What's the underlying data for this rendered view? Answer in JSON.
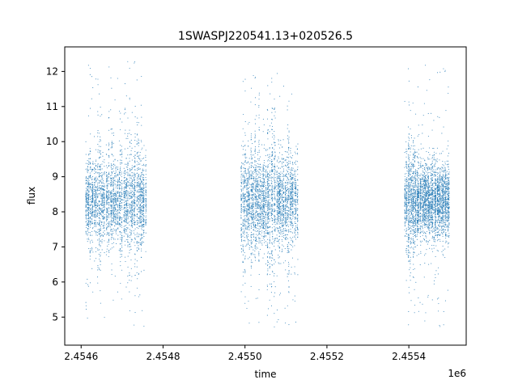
{
  "chart_data": {
    "type": "scatter",
    "title": "1SWASPJ220541.13+020526.5",
    "xlabel": "time",
    "ylabel": "flux",
    "x_multiplier_label": "1e6",
    "x_tick_labels": [
      "2.4546",
      "2.4548",
      "2.4550",
      "2.4552",
      "2.4554"
    ],
    "x_ticks": [
      2454600,
      2454800,
      2455000,
      2455200,
      2455400
    ],
    "y_ticks": [
      5,
      6,
      7,
      8,
      9,
      10,
      11,
      12
    ],
    "xlim": [
      2454560,
      2455540
    ],
    "ylim": [
      4.2,
      12.7
    ],
    "grid": false,
    "marker_color": "#1f77b4",
    "observing_seasons": [
      {
        "x_start": 2454610,
        "x_end": 2454760,
        "flux_center": 8.3,
        "flux_min": 4.6,
        "flux_max": 12.3,
        "dense_band": [
          7.7,
          9.0
        ]
      },
      {
        "x_start": 2454990,
        "x_end": 2455130,
        "flux_center": 8.3,
        "flux_min": 4.7,
        "flux_max": 12.0,
        "dense_band": [
          7.6,
          9.1
        ]
      },
      {
        "x_start": 2455390,
        "x_end": 2455500,
        "flux_center": 8.3,
        "flux_min": 4.6,
        "flux_max": 12.2,
        "dense_band": [
          7.7,
          9.0
        ]
      }
    ]
  }
}
